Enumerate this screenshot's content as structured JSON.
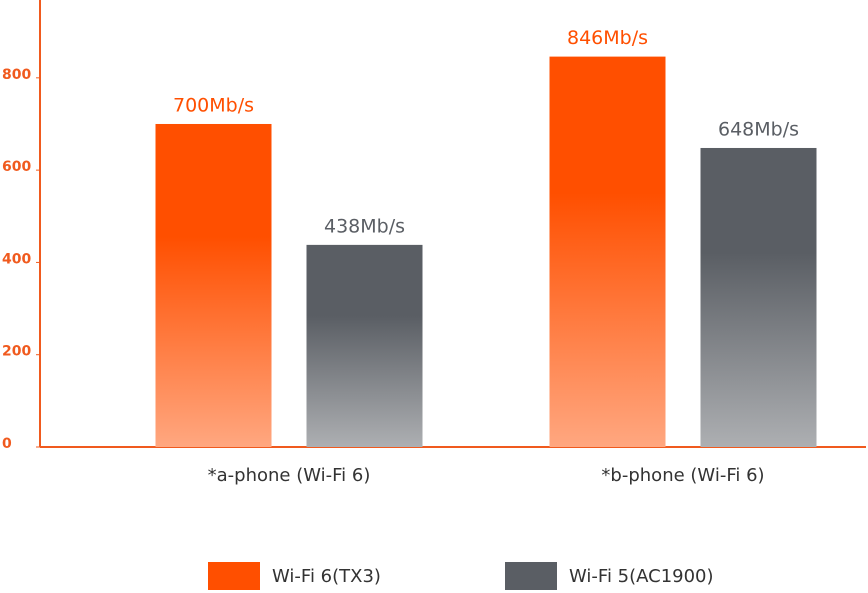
{
  "chart_data": {
    "type": "bar",
    "categories": [
      "*a-phone (Wi-Fi 6)",
      "*b-phone (Wi-Fi 6)"
    ],
    "series": [
      {
        "name": "Wi-Fi 6(TX3)",
        "color": "#ff4f00",
        "values": [
          700,
          846
        ],
        "value_labels": [
          "700Mb/s",
          "846Mb/s"
        ]
      },
      {
        "name": "Wi-Fi 5(AC1900)",
        "color": "#5a5e64",
        "values": [
          438,
          648
        ],
        "value_labels": [
          "438Mb/s",
          "648Mb/s"
        ]
      }
    ],
    "ylim": [
      0,
      960
    ],
    "yticks": [
      0,
      200,
      400,
      600,
      800
    ],
    "axis_color": "#f05a1e",
    "grid": false
  }
}
